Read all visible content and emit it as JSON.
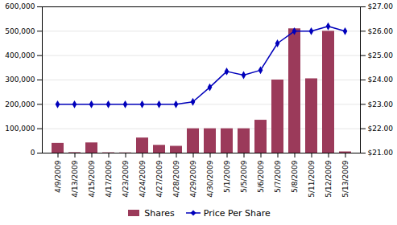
{
  "chart_data": {
    "type": "bar",
    "categories": [
      "4/9/2009",
      "4/13/2009",
      "4/15/2009",
      "4/17/2009",
      "4/23/2009",
      "4/24/2009",
      "4/27/2009",
      "4/28/2009",
      "4/29/2009",
      "4/30/2009",
      "5/1/2009",
      "5/5/2009",
      "5/6/2009",
      "5/7/2009",
      "5/8/2009",
      "5/11/2009",
      "5/12/2009",
      "5/13/2009"
    ],
    "series": [
      {
        "name": "Shares",
        "type": "bar",
        "color": "#9b3a5a",
        "values": [
          40000,
          2000,
          42000,
          1500,
          1000,
          62000,
          32000,
          28000,
          100000,
          100000,
          100000,
          100000,
          135000,
          300000,
          510000,
          305000,
          500000,
          5000
        ]
      },
      {
        "name": "Price Per Share",
        "type": "line",
        "color": "#0000bb",
        "marker": "diamond",
        "axis": "y2",
        "values": [
          23.0,
          23.0,
          23.0,
          23.0,
          23.0,
          23.0,
          23.0,
          23.0,
          23.1,
          23.7,
          24.35,
          24.2,
          24.4,
          25.5,
          26.0,
          26.0,
          26.2,
          26.0
        ]
      }
    ],
    "ylim": [
      0,
      600000
    ],
    "yticks": [
      0,
      {
        "value": 100000,
        "label": "100,000"
      },
      {
        "value": 200000,
        "label": "200,000"
      },
      {
        "value": 300000,
        "label": "300,000"
      },
      {
        "value": 400000,
        "label": "400,000"
      },
      {
        "value": 500000,
        "label": "500,000"
      },
      {
        "value": 600000,
        "label": "600,000"
      }
    ],
    "y2lim": [
      21.0,
      27.0
    ],
    "y2ticks": [
      {
        "value": 21.0,
        "label": "$21.00"
      },
      {
        "value": 22.0,
        "label": "$22.00"
      },
      {
        "value": 23.0,
        "label": "$23.00"
      },
      {
        "value": 24.0,
        "label": "$24.00"
      },
      {
        "value": 25.0,
        "label": "$25.00"
      },
      {
        "value": 26.0,
        "label": "$26.00"
      },
      {
        "value": 27.0,
        "label": "$27.00"
      }
    ],
    "grid": true,
    "legend": "bottom"
  }
}
